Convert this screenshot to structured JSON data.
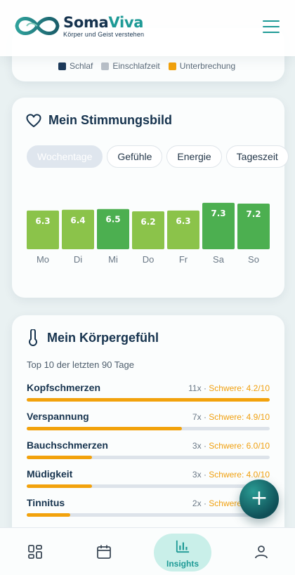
{
  "brand": {
    "name_part1": "Soma",
    "name_part2": "Viva",
    "tagline": "Körper und Geist verstehen"
  },
  "sleep_legend": [
    {
      "label": "Schlaf",
      "color": "#1d3a5a"
    },
    {
      "label": "Einschlafzeit",
      "color": "#b9c0c8"
    },
    {
      "label": "Unterbrechung",
      "color": "#f2a20c"
    }
  ],
  "mood": {
    "title": "Mein Stimmungsbild",
    "tabs": [
      "Wochentage",
      "Gefühle",
      "Energie",
      "Tageszeit"
    ],
    "active_tab": "Wochentage"
  },
  "chart_data": {
    "type": "bar",
    "categories": [
      "Mo",
      "Di",
      "Mi",
      "Do",
      "Fr",
      "Sa",
      "So"
    ],
    "values": [
      6.3,
      6.4,
      6.5,
      6.2,
      6.3,
      7.3,
      7.2
    ],
    "data_labels": [
      "6.3",
      "6.4",
      "6.5",
      "6.2",
      "6.3",
      "7.3",
      "7.2"
    ],
    "colors": [
      "#8bc34a",
      "#8bc34a",
      "#4caf50",
      "#8bc34a",
      "#8bc34a",
      "#4caf50",
      "#4caf50"
    ],
    "ylim": [
      0,
      10
    ],
    "grid": false
  },
  "body_feeling": {
    "title": "Mein Körpergefühl",
    "subtitle": "Top 10 der letzten 90 Tage",
    "symptoms": [
      {
        "name": "Kopfschmerzen",
        "count": "11x",
        "severity": "Schwere: 4.2/10",
        "share": 1.0
      },
      {
        "name": "Verspannung",
        "count": "7x",
        "severity": "Schwere: 4.9/10",
        "share": 0.64
      },
      {
        "name": "Bauchschmerzen",
        "count": "3x",
        "severity": "Schwere: 6.0/10",
        "share": 0.27
      },
      {
        "name": "Müdigkeit",
        "count": "3x",
        "severity": "Schwere: 4.0/10",
        "share": 0.27
      },
      {
        "name": "Tinnitus",
        "count": "2x",
        "severity": "Schwere: 3.0/10",
        "share": 0.18
      }
    ]
  },
  "fab": {
    "label": "+"
  },
  "nav": {
    "active_label": "Insights"
  },
  "icons": {
    "menu": "hamburger-icon",
    "mood": "heart-outline-icon",
    "body": "thermometer-icon",
    "nav": [
      "dashboard-icon",
      "calendar-icon",
      "bar-chart-icon",
      "user-icon"
    ]
  }
}
